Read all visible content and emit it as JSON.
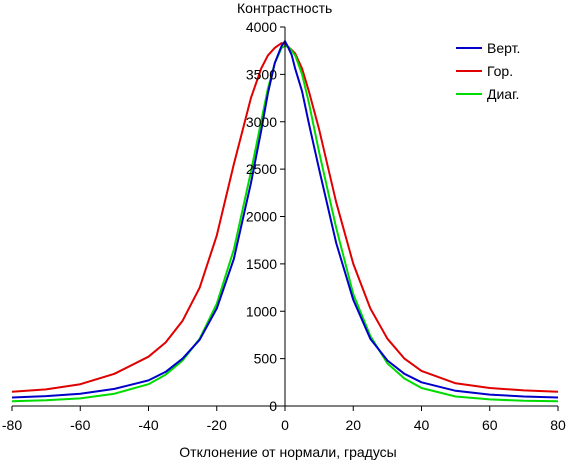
{
  "chart_data": {
    "type": "line",
    "title": "",
    "ylabel": "Контрастность",
    "xlabel": "Отклонение от нормали, градусы",
    "xlim": [
      -80,
      80
    ],
    "ylim": [
      0,
      4000
    ],
    "xticks": [
      -80,
      -60,
      -40,
      -20,
      0,
      20,
      40,
      60,
      80
    ],
    "xtick_labels": [
      "-80",
      "-60",
      "-40",
      "-20",
      "0",
      "20",
      "40",
      "60",
      "80"
    ],
    "yticks": [
      0,
      500,
      1000,
      1500,
      2000,
      2500,
      3000,
      3500,
      4000
    ],
    "ytick_labels": [
      "0",
      "500",
      "1000",
      "1500",
      "2000",
      "2500",
      "3000",
      "3500",
      "4000"
    ],
    "grid": false,
    "legend": "top-right",
    "series": [
      {
        "name": "Верт.",
        "color": "#0000c8",
        "x": [
          -80,
          -70,
          -60,
          -50,
          -40,
          -35,
          -30,
          -25,
          -20,
          -15,
          -10,
          -7,
          -5,
          -3,
          -1,
          0,
          1,
          2,
          3,
          5,
          7,
          10,
          15,
          20,
          25,
          30,
          35,
          40,
          50,
          60,
          70,
          80
        ],
        "y": [
          90,
          105,
          130,
          180,
          270,
          360,
          500,
          700,
          1030,
          1550,
          2350,
          2900,
          3300,
          3620,
          3800,
          3850,
          3780,
          3700,
          3560,
          3320,
          2980,
          2500,
          1720,
          1120,
          710,
          480,
          340,
          250,
          160,
          120,
          100,
          90
        ]
      },
      {
        "name": "Гор.",
        "color": "#e00000",
        "x": [
          -80,
          -70,
          -60,
          -50,
          -40,
          -35,
          -30,
          -25,
          -20,
          -15,
          -10,
          -7,
          -5,
          -3,
          -1,
          0,
          1,
          3,
          5,
          7,
          10,
          15,
          20,
          25,
          30,
          35,
          40,
          50,
          60,
          70,
          80
        ],
        "y": [
          150,
          175,
          230,
          340,
          520,
          670,
          900,
          1250,
          1800,
          2550,
          3250,
          3560,
          3700,
          3780,
          3830,
          3820,
          3790,
          3720,
          3560,
          3320,
          2920,
          2150,
          1500,
          1030,
          710,
          500,
          370,
          240,
          190,
          165,
          150
        ]
      },
      {
        "name": "Диаг.",
        "color": "#00dc00",
        "x": [
          -80,
          -70,
          -60,
          -50,
          -40,
          -35,
          -30,
          -25,
          -20,
          -15,
          -10,
          -7,
          -5,
          -3,
          -1,
          0,
          1,
          3,
          5,
          7,
          10,
          15,
          20,
          25,
          30,
          35,
          40,
          50,
          60,
          70,
          80
        ],
        "y": [
          50,
          60,
          80,
          130,
          230,
          330,
          480,
          710,
          1080,
          1650,
          2470,
          3000,
          3350,
          3620,
          3780,
          3800,
          3790,
          3700,
          3500,
          3200,
          2680,
          1880,
          1180,
          740,
          450,
          290,
          190,
          100,
          70,
          55,
          50
        ]
      }
    ]
  }
}
